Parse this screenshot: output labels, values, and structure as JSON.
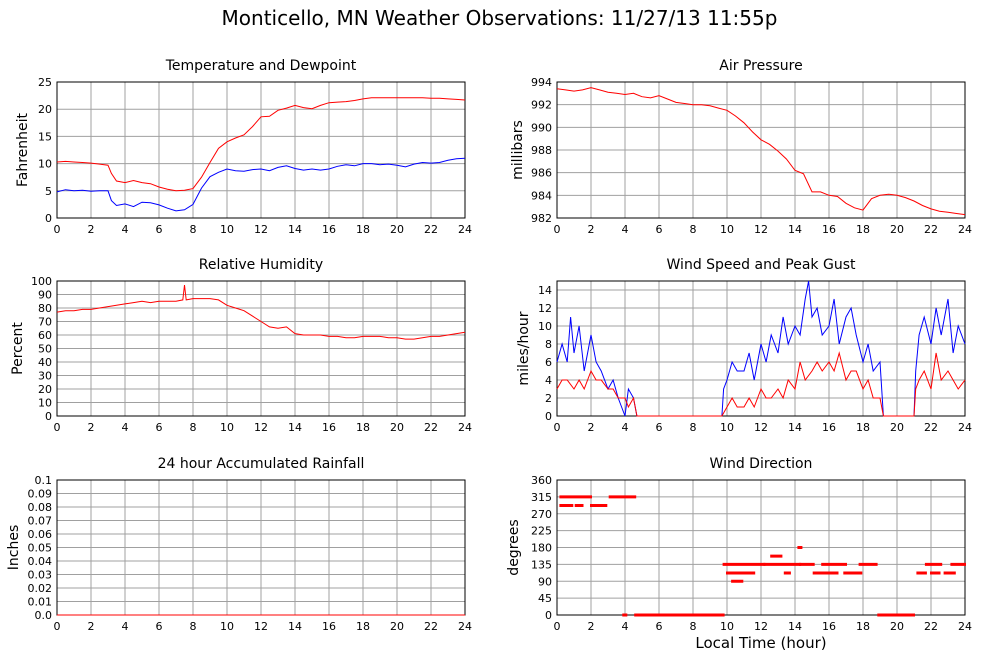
{
  "page": {
    "title": "Monticello, MN Weather Observations: 11/27/13 11:55p",
    "x_axis_label": "Local Time (hour)"
  },
  "colors": {
    "red": "#ff0000",
    "blue": "#0000ff",
    "grid": "#a0a0a0",
    "axis": "#000000"
  },
  "chart_data": [
    {
      "id": "temperature",
      "type": "line",
      "title": "Temperature and Dewpoint",
      "ylabel": "Fahrenheit",
      "xlim": [
        0,
        24
      ],
      "ylim": [
        0,
        25
      ],
      "x_ticks": [
        0,
        2,
        4,
        6,
        8,
        10,
        12,
        14,
        16,
        18,
        20,
        22,
        24
      ],
      "y_ticks": [
        0,
        5,
        10,
        15,
        20,
        25
      ],
      "y_tick_labels": [
        "0",
        "5",
        "10",
        "15",
        "20",
        "25"
      ],
      "grid": true,
      "series": [
        {
          "color": "#ff0000",
          "x": [
            0,
            0.5,
            1,
            1.5,
            2,
            2.5,
            3,
            3.2,
            3.5,
            4,
            4.5,
            5,
            5.5,
            6,
            6.5,
            7,
            7.5,
            8,
            8.5,
            9,
            9.5,
            10,
            10.5,
            11,
            11.5,
            12,
            12.5,
            13,
            13.5,
            14,
            14.5,
            15,
            15.5,
            16,
            16.5,
            17,
            17.5,
            18,
            18.5,
            19,
            19.5,
            20,
            20.5,
            21,
            21.5,
            22,
            22.5,
            23,
            23.5,
            24
          ],
          "y": [
            10.3,
            10.4,
            10.3,
            10.2,
            10.1,
            9.9,
            9.7,
            8.2,
            6.8,
            6.5,
            6.9,
            6.5,
            6.3,
            5.7,
            5.3,
            5.0,
            5.1,
            5.4,
            7.5,
            10.2,
            12.8,
            14.0,
            14.7,
            15.3,
            16.8,
            18.6,
            18.7,
            19.8,
            20.2,
            20.7,
            20.3,
            20.1,
            20.7,
            21.2,
            21.3,
            21.4,
            21.6,
            21.9,
            22.1,
            22.1,
            22.1,
            22.1,
            22.1,
            22.1,
            22.1,
            22.0,
            22.0,
            21.9,
            21.8,
            21.7
          ]
        },
        {
          "color": "#0000ff",
          "x": [
            0,
            0.5,
            1,
            1.5,
            2,
            2.5,
            3,
            3.2,
            3.5,
            4,
            4.5,
            5,
            5.5,
            6,
            6.5,
            7,
            7.5,
            8,
            8.5,
            9,
            9.5,
            10,
            10.5,
            11,
            11.5,
            12,
            12.5,
            13,
            13.5,
            14,
            14.5,
            15,
            15.5,
            16,
            16.5,
            17,
            17.5,
            18,
            18.5,
            19,
            19.5,
            20,
            20.5,
            21,
            21.5,
            22,
            22.5,
            23,
            23.5,
            24
          ],
          "y": [
            4.8,
            5.2,
            5.0,
            5.1,
            4.9,
            5.0,
            5.0,
            3.2,
            2.3,
            2.6,
            2.1,
            2.9,
            2.8,
            2.4,
            1.8,
            1.3,
            1.5,
            2.5,
            5.5,
            7.6,
            8.4,
            9.0,
            8.7,
            8.6,
            8.9,
            9.0,
            8.7,
            9.3,
            9.6,
            9.1,
            8.8,
            9.0,
            8.8,
            9.0,
            9.5,
            9.8,
            9.6,
            10.0,
            10.0,
            9.8,
            9.9,
            9.7,
            9.4,
            9.9,
            10.2,
            10.1,
            10.2,
            10.6,
            10.9,
            11.0
          ]
        }
      ]
    },
    {
      "id": "pressure",
      "type": "line",
      "title": "Air Pressure",
      "ylabel": "millibars",
      "xlim": [
        0,
        24
      ],
      "ylim": [
        982,
        994
      ],
      "x_ticks": [
        0,
        2,
        4,
        6,
        8,
        10,
        12,
        14,
        16,
        18,
        20,
        22,
        24
      ],
      "y_ticks": [
        982,
        984,
        986,
        988,
        990,
        992,
        994
      ],
      "y_tick_labels": [
        "982",
        "984",
        "986",
        "988",
        "990",
        "992",
        "994"
      ],
      "grid": true,
      "series": [
        {
          "color": "#ff0000",
          "x": [
            0,
            0.5,
            1,
            1.5,
            2,
            2.5,
            3,
            3.5,
            4,
            4.5,
            5,
            5.5,
            6,
            6.5,
            7,
            7.5,
            8,
            8.5,
            9,
            9.5,
            10,
            10.5,
            11,
            11.5,
            12,
            12.5,
            13,
            13.5,
            14,
            14.5,
            15,
            15.5,
            16,
            16.5,
            17,
            17.5,
            18,
            18.5,
            19,
            19.5,
            20,
            20.5,
            21,
            21.5,
            22,
            22.5,
            23,
            23.5,
            24
          ],
          "y": [
            993.4,
            993.3,
            993.2,
            993.3,
            993.5,
            993.3,
            993.1,
            993.0,
            992.9,
            993.0,
            992.7,
            992.6,
            992.8,
            992.5,
            992.2,
            992.1,
            992.0,
            992.0,
            991.9,
            991.7,
            991.5,
            991.0,
            990.4,
            989.6,
            988.9,
            988.5,
            987.9,
            987.2,
            986.2,
            985.9,
            984.3,
            984.3,
            984.0,
            983.9,
            983.3,
            982.9,
            982.7,
            983.7,
            984.0,
            984.1,
            984.0,
            983.8,
            983.5,
            983.1,
            982.8,
            982.6,
            982.5,
            982.4,
            982.3
          ]
        }
      ]
    },
    {
      "id": "humidity",
      "type": "line",
      "title": "Relative Humidity",
      "ylabel": "Percent",
      "xlim": [
        0,
        24
      ],
      "ylim": [
        0,
        100
      ],
      "x_ticks": [
        0,
        2,
        4,
        6,
        8,
        10,
        12,
        14,
        16,
        18,
        20,
        22,
        24
      ],
      "y_ticks": [
        0,
        10,
        20,
        30,
        40,
        50,
        60,
        70,
        80,
        90,
        100
      ],
      "y_tick_labels": [
        "0",
        "10",
        "20",
        "30",
        "40",
        "50",
        "60",
        "70",
        "80",
        "90",
        "100"
      ],
      "grid": true,
      "series": [
        {
          "color": "#ff0000",
          "x": [
            0,
            0.5,
            1,
            1.5,
            2,
            2.5,
            3,
            3.5,
            4,
            4.5,
            5,
            5.5,
            6,
            6.5,
            7,
            7.4,
            7.5,
            7.6,
            8,
            8.5,
            9,
            9.5,
            10,
            10.5,
            11,
            11.5,
            12,
            12.5,
            13,
            13.5,
            14,
            14.5,
            15,
            15.5,
            16,
            16.5,
            17,
            17.5,
            18,
            18.5,
            19,
            19.5,
            20,
            20.5,
            21,
            21.5,
            22,
            22.5,
            23,
            23.5,
            24
          ],
          "y": [
            77,
            78,
            78,
            79,
            79,
            80,
            81,
            82,
            83,
            84,
            85,
            84,
            85,
            85,
            85,
            86,
            97,
            86,
            87,
            87,
            87,
            86,
            82,
            80,
            78,
            74,
            70,
            66,
            65,
            66,
            61,
            60,
            60,
            60,
            59,
            59,
            58,
            58,
            59,
            59,
            59,
            58,
            58,
            57,
            57,
            58,
            59,
            59,
            60,
            61,
            62
          ]
        }
      ]
    },
    {
      "id": "wind-speed",
      "type": "line",
      "title": "Wind Speed and Peak Gust",
      "ylabel": "miles/hour",
      "xlim": [
        0,
        24
      ],
      "ylim": [
        0,
        15
      ],
      "x_ticks": [
        0,
        2,
        4,
        6,
        8,
        10,
        12,
        14,
        16,
        18,
        20,
        22,
        24
      ],
      "y_ticks": [
        0,
        2,
        4,
        6,
        8,
        10,
        12,
        14
      ],
      "y_tick_labels": [
        "0",
        "2",
        "4",
        "6",
        "8",
        "10",
        "12",
        "14"
      ],
      "grid": true,
      "series": [
        {
          "color": "#0000ff",
          "x": [
            0,
            0.3,
            0.6,
            0.8,
            1,
            1.3,
            1.6,
            2,
            2.3,
            2.6,
            3,
            3.3,
            3.6,
            4,
            4.2,
            4.5,
            4.7,
            9.7,
            9.8,
            10,
            10.3,
            10.6,
            11,
            11.3,
            11.6,
            12,
            12.3,
            12.6,
            13,
            13.3,
            13.6,
            14,
            14.3,
            14.6,
            14.8,
            15,
            15.3,
            15.6,
            16,
            16.3,
            16.6,
            17,
            17.3,
            17.6,
            18,
            18.3,
            18.6,
            19,
            19.2,
            21,
            21.1,
            21.3,
            21.6,
            22,
            22.3,
            22.6,
            23,
            23.3,
            23.6,
            24
          ],
          "y": [
            6,
            8,
            6,
            11,
            7,
            10,
            5,
            9,
            6,
            5,
            3,
            4,
            2,
            0,
            3,
            2,
            0,
            0,
            3,
            4,
            6,
            5,
            5,
            7,
            4,
            8,
            6,
            9,
            7,
            11,
            8,
            10,
            9,
            13,
            15,
            11,
            12,
            9,
            10,
            13,
            8,
            11,
            12,
            9,
            6,
            8,
            5,
            6,
            0,
            0,
            5,
            9,
            11,
            8,
            12,
            9,
            13,
            7,
            10,
            8
          ]
        },
        {
          "color": "#ff0000",
          "x": [
            0,
            0.3,
            0.6,
            1,
            1.3,
            1.6,
            2,
            2.3,
            2.6,
            3,
            3.3,
            3.6,
            4,
            4.2,
            4.5,
            4.7,
            9.7,
            10,
            10.3,
            10.6,
            11,
            11.3,
            11.6,
            12,
            12.3,
            12.6,
            13,
            13.3,
            13.6,
            14,
            14.3,
            14.6,
            15,
            15.3,
            15.6,
            16,
            16.3,
            16.6,
            17,
            17.3,
            17.6,
            18,
            18.3,
            18.6,
            19,
            19.2,
            21,
            21.1,
            21.3,
            21.6,
            22,
            22.3,
            22.6,
            23,
            23.3,
            23.6,
            24
          ],
          "y": [
            3,
            4,
            4,
            3,
            4,
            3,
            5,
            4,
            4,
            3,
            3,
            2,
            2,
            1,
            2,
            0,
            0,
            1,
            2,
            1,
            1,
            2,
            1,
            3,
            2,
            2,
            3,
            2,
            4,
            3,
            6,
            4,
            5,
            6,
            5,
            6,
            5,
            7,
            4,
            5,
            5,
            3,
            4,
            2,
            2,
            0,
            0,
            3,
            4,
            5,
            3,
            7,
            4,
            5,
            4,
            3,
            4
          ]
        }
      ]
    },
    {
      "id": "rainfall",
      "type": "line",
      "title": "24 hour Accumulated Rainfall",
      "ylabel": "Inches",
      "xlim": [
        0,
        24
      ],
      "ylim": [
        0,
        0.1
      ],
      "x_ticks": [
        0,
        2,
        4,
        6,
        8,
        10,
        12,
        14,
        16,
        18,
        20,
        22,
        24
      ],
      "y_ticks": [
        0,
        0.01,
        0.02,
        0.03,
        0.04,
        0.05,
        0.06,
        0.07,
        0.08,
        0.09,
        0.1
      ],
      "y_tick_labels": [
        "0.0",
        "0.01",
        "0.02",
        "0.03",
        "0.04",
        "0.05",
        "0.06",
        "0.07",
        "0.08",
        "0.09",
        "0.1"
      ],
      "grid": true,
      "series": [
        {
          "color": "#ff0000",
          "x": [
            0,
            24
          ],
          "y": [
            0,
            0
          ]
        }
      ]
    },
    {
      "id": "wind-direction",
      "type": "scatter",
      "title": "Wind Direction",
      "ylabel": "degrees",
      "xlim": [
        0,
        24
      ],
      "ylim": [
        0,
        360
      ],
      "x_ticks": [
        0,
        2,
        4,
        6,
        8,
        10,
        12,
        14,
        16,
        18,
        20,
        22,
        24
      ],
      "y_ticks": [
        0,
        45,
        90,
        135,
        180,
        225,
        270,
        315,
        360
      ],
      "y_tick_labels": [
        "0",
        "45",
        "90",
        "135",
        "180",
        "225",
        "270",
        "315",
        "360"
      ],
      "grid": true,
      "runs": [
        {
          "x0": 0.2,
          "x1": 2.0,
          "y": 315
        },
        {
          "x0": 0.2,
          "x1": 0.9,
          "y": 292
        },
        {
          "x0": 1.1,
          "x1": 1.5,
          "y": 292
        },
        {
          "x0": 2.0,
          "x1": 2.9,
          "y": 292
        },
        {
          "x0": 3.1,
          "x1": 4.6,
          "y": 315
        },
        {
          "x0": 3.9,
          "x1": 3.9,
          "y": 0
        },
        {
          "x0": 4.6,
          "x1": 9.8,
          "y": 0
        },
        {
          "x0": 9.8,
          "x1": 12.2,
          "y": 135
        },
        {
          "x0": 10.0,
          "x1": 11.6,
          "y": 112
        },
        {
          "x0": 10.3,
          "x1": 10.9,
          "y": 90
        },
        {
          "x0": 12.2,
          "x1": 14.3,
          "y": 135
        },
        {
          "x0": 12.6,
          "x1": 13.2,
          "y": 157
        },
        {
          "x0": 13.4,
          "x1": 13.7,
          "y": 112
        },
        {
          "x0": 14.2,
          "x1": 14.3,
          "y": 180
        },
        {
          "x0": 14.3,
          "x1": 15.1,
          "y": 135
        },
        {
          "x0": 15.1,
          "x1": 16.5,
          "y": 112
        },
        {
          "x0": 15.6,
          "x1": 17.0,
          "y": 135
        },
        {
          "x0": 16.9,
          "x1": 17.9,
          "y": 112
        },
        {
          "x0": 17.8,
          "x1": 18.8,
          "y": 135
        },
        {
          "x0": 18.9,
          "x1": 21.0,
          "y": 0
        },
        {
          "x0": 21.2,
          "x1": 21.7,
          "y": 112
        },
        {
          "x0": 21.7,
          "x1": 22.6,
          "y": 135
        },
        {
          "x0": 22.0,
          "x1": 22.5,
          "y": 112
        },
        {
          "x0": 22.8,
          "x1": 23.4,
          "y": 112
        },
        {
          "x0": 23.2,
          "x1": 24.0,
          "y": 135
        }
      ],
      "color": "#ff0000"
    }
  ]
}
